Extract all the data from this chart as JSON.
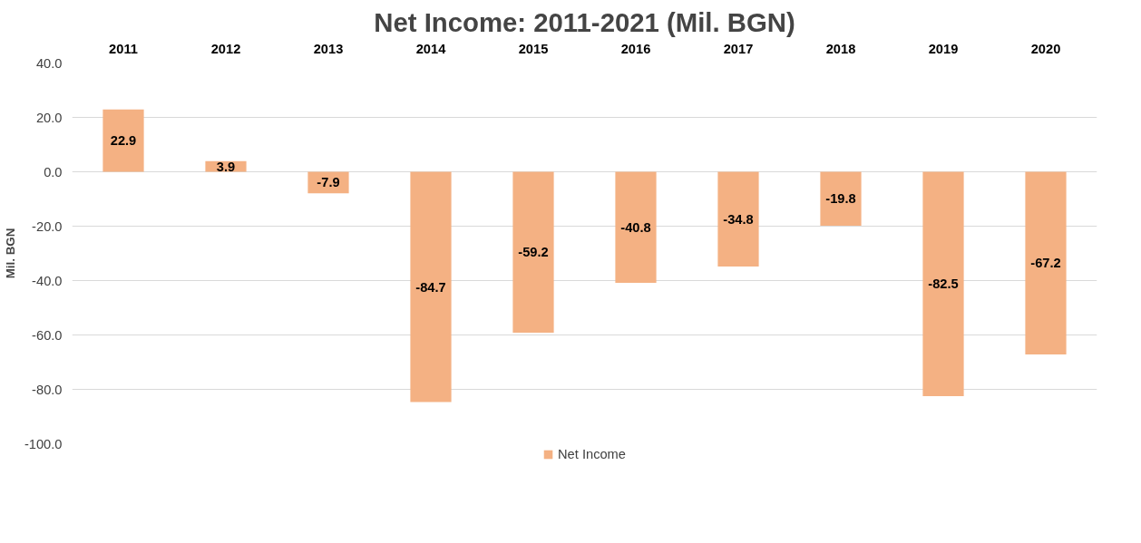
{
  "chart_data": {
    "type": "bar",
    "title": "Net Income: 2011-2021 (Mil. BGN)",
    "ylabel": "Mil. BGN",
    "categories": [
      "2011",
      "2012",
      "2013",
      "2014",
      "2015",
      "2016",
      "2017",
      "2018",
      "2019",
      "2020"
    ],
    "series": [
      {
        "name": "Net Income",
        "color": "#f4b183",
        "values": [
          22.9,
          3.9,
          -7.9,
          -84.7,
          -59.2,
          -40.8,
          -34.8,
          -19.8,
          -82.5,
          -67.2
        ]
      }
    ],
    "ylim": [
      -100,
      40
    ],
    "yticks": [
      {
        "value": -100,
        "label": "-100.0"
      },
      {
        "value": -80,
        "label": "-80.0"
      },
      {
        "value": -60,
        "label": "-60.0"
      },
      {
        "value": -40,
        "label": "-40.0"
      },
      {
        "value": -20,
        "label": "-20.0"
      },
      {
        "value": 0,
        "label": "0.0"
      },
      {
        "value": 20,
        "label": "20.0"
      },
      {
        "value": 40,
        "label": "40.0"
      }
    ],
    "grid": "y",
    "legend": "bottom",
    "data_labels": true
  }
}
